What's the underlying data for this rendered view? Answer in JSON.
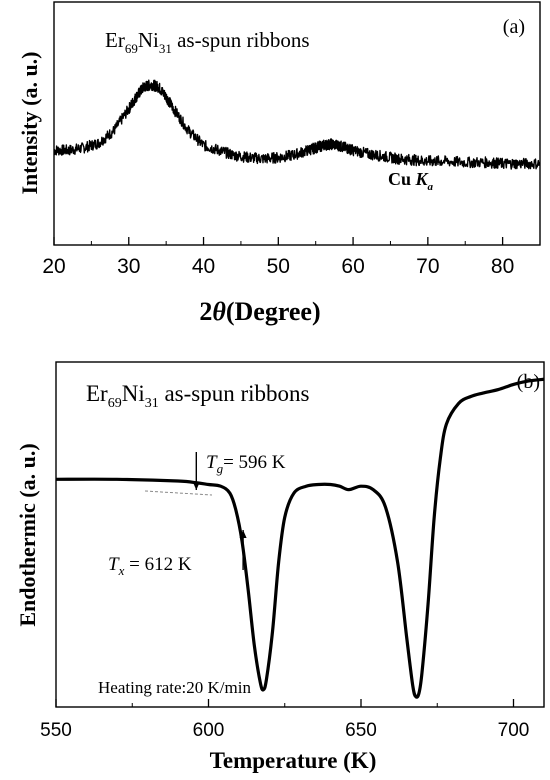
{
  "chart_data": [
    {
      "type": "line",
      "panel_label": "(a)",
      "annotation": {
        "base": "Er",
        "sub1": "69",
        "mid": "Ni",
        "sub2": "31",
        "tail": " as-spun ribbons"
      },
      "source_label": {
        "main": "Cu ",
        "k": "K",
        "sub": "a"
      },
      "ylabel": "Intensity (a. u.)",
      "xlabel": {
        "theta_prefix": "2",
        "theta": "θ",
        "rest": "(Degree)"
      },
      "xlim": [
        20,
        85
      ],
      "ylim": [
        0,
        1
      ],
      "xticks": [
        "20",
        "30",
        "40",
        "50",
        "60",
        "70",
        "80"
      ],
      "xtick_values": [
        20,
        30,
        40,
        50,
        60,
        70,
        80
      ],
      "grid": false,
      "series": [
        {
          "x": [
            20,
            22,
            24,
            26,
            28,
            30,
            31,
            32,
            33,
            34,
            35,
            36,
            38,
            40,
            42,
            44,
            46,
            48,
            50,
            52,
            54,
            55,
            56,
            57,
            58,
            59,
            60,
            62,
            64,
            66,
            68,
            70,
            72,
            75,
            78,
            80,
            82,
            85
          ],
          "y": [
            0.39,
            0.39,
            0.4,
            0.42,
            0.47,
            0.56,
            0.61,
            0.65,
            0.66,
            0.65,
            0.61,
            0.56,
            0.47,
            0.41,
            0.39,
            0.37,
            0.36,
            0.355,
            0.36,
            0.37,
            0.39,
            0.4,
            0.41,
            0.415,
            0.41,
            0.4,
            0.39,
            0.375,
            0.365,
            0.355,
            0.35,
            0.345,
            0.345,
            0.34,
            0.34,
            0.335,
            0.335,
            0.335
          ]
        }
      ]
    },
    {
      "type": "line",
      "panel_label": "(b)",
      "annotation": {
        "base": "Er",
        "sub1": "69",
        "mid": "Ni",
        "sub2": "31",
        "tail": " as-spun ribbons"
      },
      "tg_label": {
        "sym": "T",
        "sub": "g",
        "value": "= 596 K"
      },
      "tx_label": {
        "sym": "T",
        "sub": "x",
        "value": " = 612 K"
      },
      "heating_rate": "Heating rate:20 K/min",
      "ylabel": "Endothermic (a. u.)",
      "xlabel": "Temperature (K)",
      "xlim": [
        550,
        710
      ],
      "ylim": [
        0,
        1
      ],
      "xticks": [
        "550",
        "600",
        "650",
        "700"
      ],
      "xtick_values": [
        550,
        600,
        650,
        700
      ],
      "tg_value": 596,
      "tx_value": 612,
      "grid": false,
      "series": [
        {
          "x": [
            550,
            570,
            590,
            596,
            600,
            604,
            607,
            609,
            611,
            613,
            615,
            617,
            618,
            619,
            621,
            623,
            625,
            628,
            632,
            636,
            640,
            643,
            646,
            650,
            654,
            658,
            662,
            665,
            667,
            668,
            669,
            670,
            672,
            674,
            676,
            678,
            682,
            686,
            690,
            695,
            700,
            705,
            710
          ],
          "y": [
            0.66,
            0.66,
            0.655,
            0.65,
            0.645,
            0.64,
            0.62,
            0.57,
            0.48,
            0.34,
            0.18,
            0.07,
            0.05,
            0.08,
            0.22,
            0.42,
            0.55,
            0.62,
            0.64,
            0.645,
            0.645,
            0.64,
            0.63,
            0.64,
            0.63,
            0.58,
            0.42,
            0.2,
            0.06,
            0.03,
            0.04,
            0.1,
            0.3,
            0.55,
            0.72,
            0.82,
            0.88,
            0.9,
            0.91,
            0.92,
            0.935,
            0.945,
            0.95
          ]
        }
      ]
    }
  ]
}
